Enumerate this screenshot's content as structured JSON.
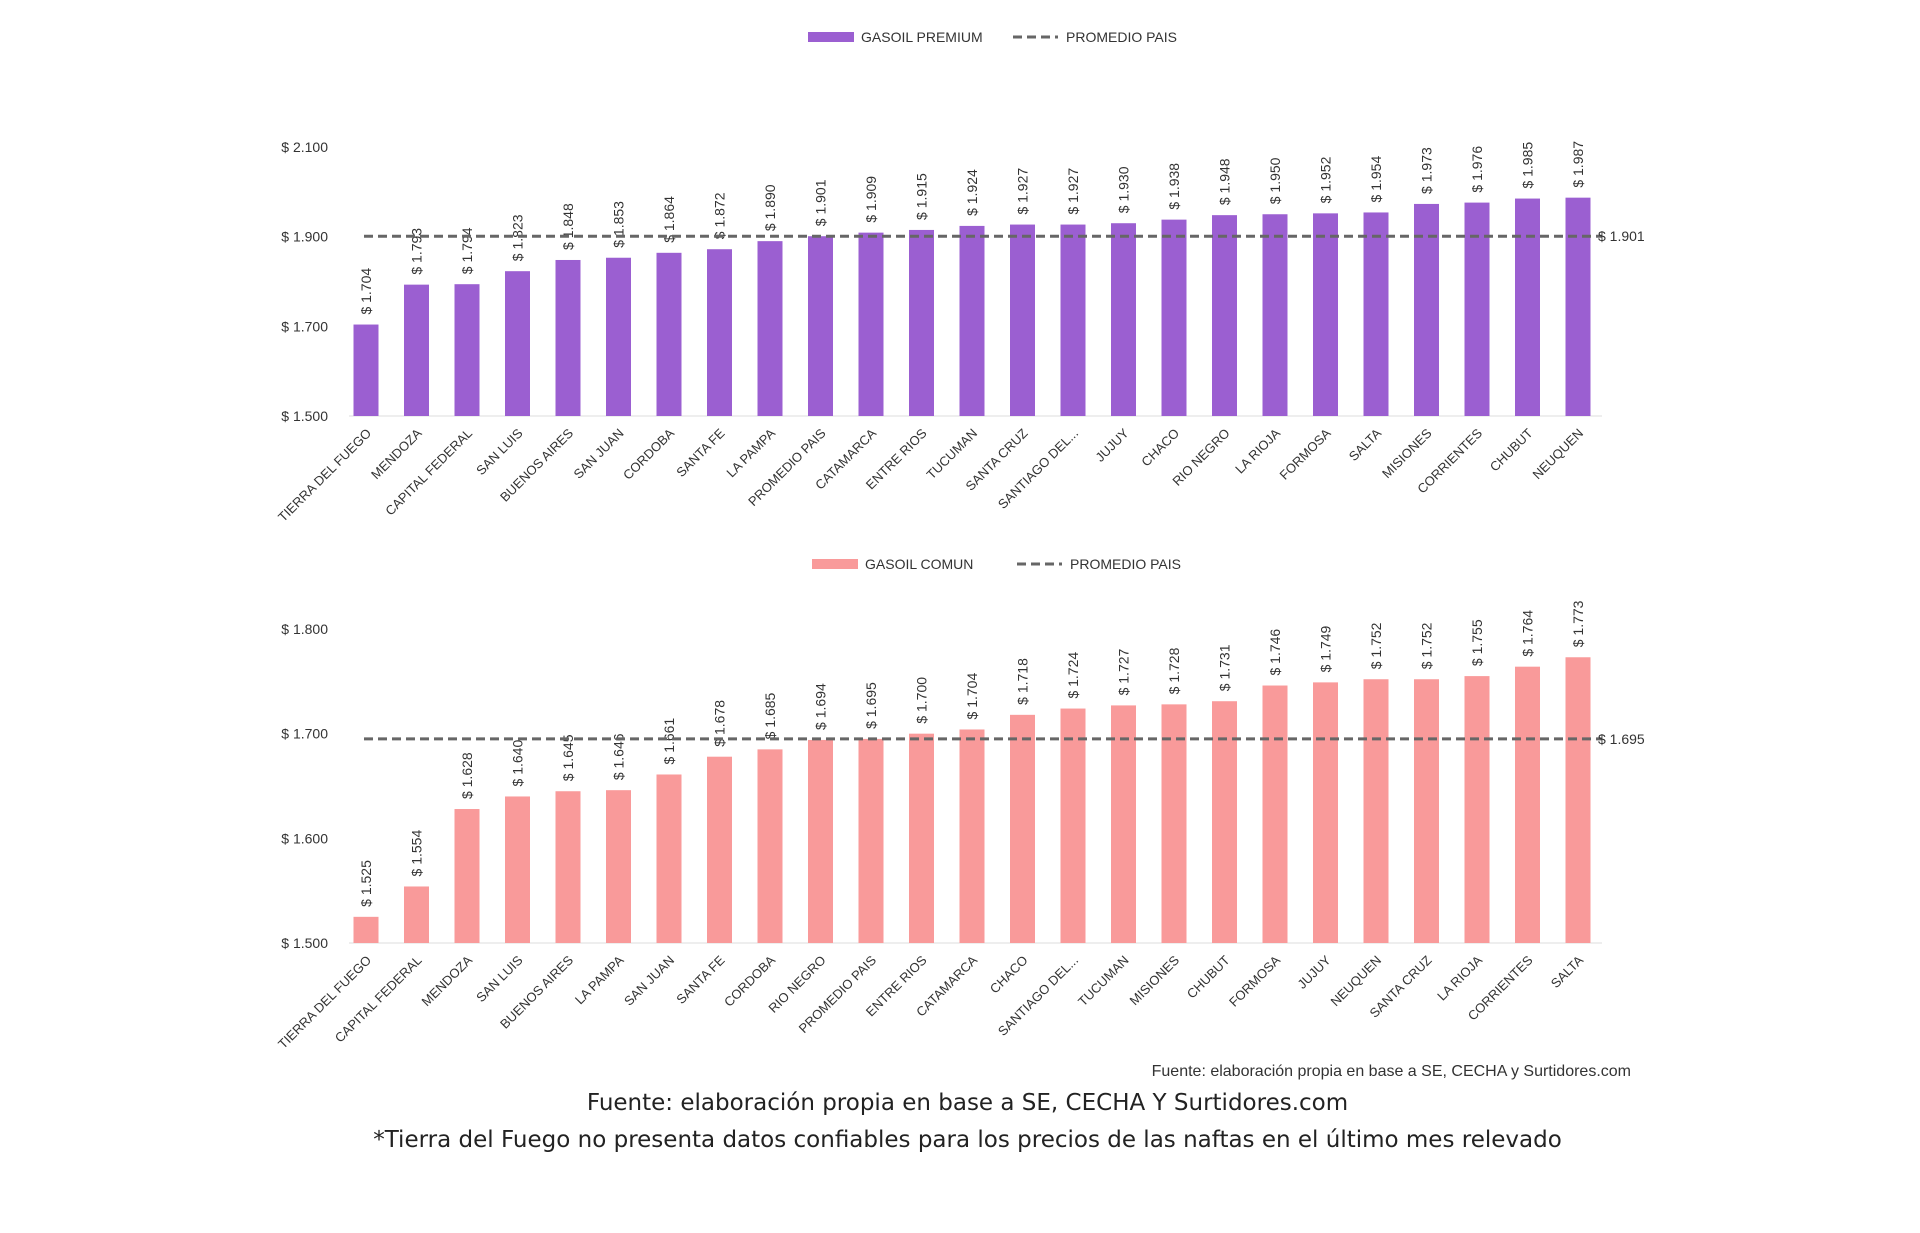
{
  "chart_data": [
    {
      "type": "bar",
      "legend": {
        "bar": "GASOIL PREMIUM",
        "line": "PROMEDIO PAIS",
        "placement": "top"
      },
      "categories": [
        "TIERRA DEL FUEGO",
        "MENDOZA",
        "CAPITAL FEDERAL",
        "SAN LUIS",
        "BUENOS AIRES",
        "SAN JUAN",
        "CORDOBA",
        "SANTA FE",
        "LA PAMPA",
        "PROMEDIO PAIS",
        "CATAMARCA",
        "ENTRE RIOS",
        "TUCUMAN",
        "SANTA CRUZ",
        "SANTIAGO DEL...",
        "JUJUY",
        "CHACO",
        "RIO NEGRO",
        "LA RIOJA",
        "FORMOSA",
        "SALTA",
        "MISIONES",
        "CORRIENTES",
        "CHUBUT",
        "NEUQUEN"
      ],
      "values": [
        1704,
        1793,
        1794,
        1823,
        1848,
        1853,
        1864,
        1872,
        1890,
        1901,
        1909,
        1915,
        1924,
        1927,
        1927,
        1930,
        1938,
        1948,
        1950,
        1952,
        1954,
        1973,
        1976,
        1985,
        1987
      ],
      "data_labels": [
        "$ 1.704",
        "$ 1.793",
        "$ 1.794",
        "$ 1.823",
        "$ 1.848",
        "$ 1.853",
        "$ 1.864",
        "$ 1.872",
        "$ 1.890",
        "$ 1.901",
        "$ 1.909",
        "$ 1.915",
        "$ 1.924",
        "$ 1.927",
        "$ 1.927",
        "$ 1.930",
        "$ 1.938",
        "$ 1.948",
        "$ 1.950",
        "$ 1.952",
        "$ 1.954",
        "$ 1.973",
        "$ 1.976",
        "$ 1.985",
        "$ 1.987"
      ],
      "average": 1901,
      "average_label": "$ 1.901",
      "ylim": [
        1500,
        2100
      ],
      "yticks": [
        1500,
        1700,
        1900,
        2100
      ],
      "ytick_labels": [
        "$ 1.500",
        "$ 1.700",
        "$ 1.900",
        "$ 2.100"
      ],
      "color": "#9b5fd1",
      "grid": false
    },
    {
      "type": "bar",
      "legend": {
        "bar": "GASOIL COMUN",
        "line": "PROMEDIO PAIS",
        "placement": "top"
      },
      "categories": [
        "TIERRA DEL FUEGO",
        "CAPITAL FEDERAL",
        "MENDOZA",
        "SAN LUIS",
        "BUENOS AIRES",
        "LA PAMPA",
        "SAN JUAN",
        "SANTA FE",
        "CORDOBA",
        "RIO NEGRO",
        "PROMEDIO PAIS",
        "ENTRE RIOS",
        "CATAMARCA",
        "CHACO",
        "SANTIAGO DEL...",
        "TUCUMAN",
        "MISIONES",
        "CHUBUT",
        "FORMOSA",
        "JUJUY",
        "NEUQUEN",
        "SANTA CRUZ",
        "LA RIOJA",
        "CORRIENTES",
        "SALTA"
      ],
      "values": [
        1525,
        1554,
        1628,
        1640,
        1645,
        1646,
        1661,
        1678,
        1685,
        1694,
        1695,
        1700,
        1704,
        1718,
        1724,
        1727,
        1728,
        1731,
        1746,
        1749,
        1752,
        1752,
        1755,
        1764,
        1773
      ],
      "data_labels": [
        "$ 1.525",
        "$ 1.554",
        "$ 1.628",
        "$ 1.640",
        "$ 1.645",
        "$ 1.646",
        "$ 1.661",
        "$ 1.678",
        "$ 1.685",
        "$ 1.694",
        "$ 1.695",
        "$ 1.700",
        "$ 1.704",
        "$ 1.718",
        "$ 1.724",
        "$ 1.727",
        "$ 1.728",
        "$ 1.731",
        "$ 1.746",
        "$ 1.749",
        "$ 1.752",
        "$ 1.752",
        "$ 1.755",
        "$ 1.764",
        "$ 1.773"
      ],
      "average": 1695,
      "average_label": "$ 1.695",
      "ylim": [
        1500,
        1800
      ],
      "yticks": [
        1500,
        1600,
        1700,
        1800
      ],
      "ytick_labels": [
        "$ 1.500",
        "$ 1.600",
        "$ 1.700",
        "$ 1.800"
      ],
      "color": "#f99a9a",
      "grid": false
    }
  ],
  "source_small": "Fuente: elaboración propia en base a SE, CECHA y Surtidores.com",
  "footer": {
    "source": "Fuente: elaboración propia en base a SE, CECHA Y Surtidores.com",
    "note": "*Tierra del Fuego no presenta datos confiables para los precios de las naftas en el último mes relevado"
  }
}
